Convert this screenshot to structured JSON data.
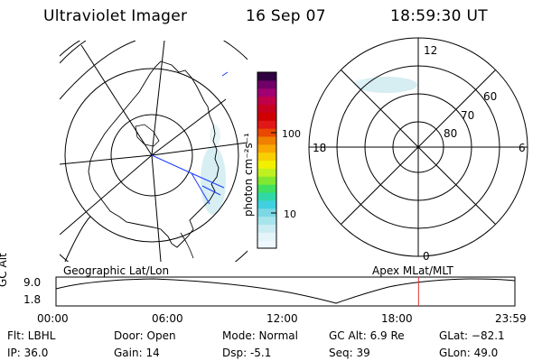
{
  "header": {
    "instrument": "Ultraviolet Imager",
    "date": "16 Sep 07",
    "time": "18:59:30 UT"
  },
  "colorbar": {
    "label": "photon cm⁻²s⁻¹",
    "ticks": [
      "100",
      "10"
    ],
    "colors": [
      "#f0f8ff",
      "#e4f4f8",
      "#ccecf4",
      "#a8e4ec",
      "#7cd8e4",
      "#40d0e0",
      "#30d8a8",
      "#40e060",
      "#80e830",
      "#c0f020",
      "#f0f000",
      "#f8d000",
      "#f8a800",
      "#f08000",
      "#e84800",
      "#e01818",
      "#d00000",
      "#c80020",
      "#c00048",
      "#a00070",
      "#700068",
      "#300040"
    ]
  },
  "left_map": {
    "projection_label": "Geographic Lat/Lon"
  },
  "right_map": {
    "projection_label": "Apex MLat/MLT",
    "mlt_labels": [
      "12",
      "6",
      "0",
      "18"
    ],
    "lat_labels": [
      "60",
      "70",
      "80"
    ]
  },
  "altitude_plot": {
    "axis_label": "GC Alt",
    "max_label": "9.0",
    "min_label": "1.8",
    "time_ticks": [
      "00:00",
      "06:00",
      "12:00",
      "18:00",
      "23:59"
    ],
    "current_time_fraction": 0.79,
    "marker_color": "#e03030"
  },
  "info": {
    "filter": "Flt: LBHL",
    "ip": "IP: 36.0",
    "door": "Door: Open",
    "gain": "Gain: 14",
    "mode": "Mode: Normal",
    "dsp": "Dsp:    -5.1",
    "gc_alt": "GC Alt: 6.9 Re",
    "seq": "Seq: 39",
    "glat": "GLat: −82.1",
    "glon": "GLon:  49.0"
  }
}
